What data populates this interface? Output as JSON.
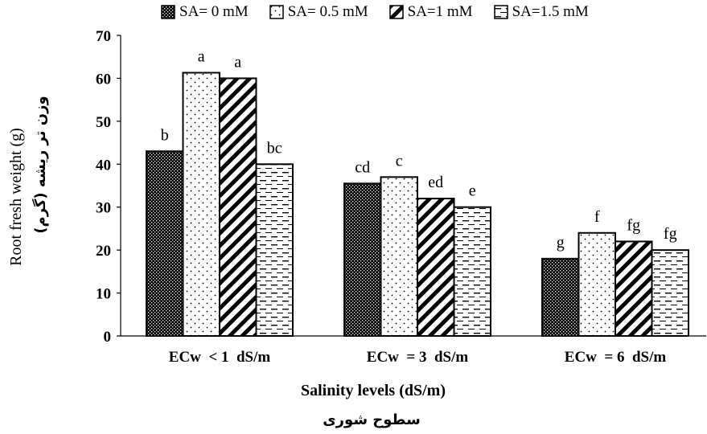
{
  "chart_data": {
    "type": "bar",
    "categories": [
      "ECw  < 1  dS/m",
      "ECw  = 3  dS/m",
      "ECw  = 6  dS/m"
    ],
    "series": [
      {
        "name": "SA= 0 mM",
        "pattern": "dots-dark",
        "values": [
          43,
          35.5,
          18
        ],
        "letters": [
          "b",
          "cd",
          "g"
        ]
      },
      {
        "name": "SA= 0.5 mM",
        "pattern": "dots-light",
        "values": [
          61.3,
          37,
          24
        ],
        "letters": [
          "a",
          "c",
          "f"
        ]
      },
      {
        "name": "SA=1 mM",
        "pattern": "diagonal-stripes",
        "values": [
          60,
          32,
          22
        ],
        "letters": [
          "a",
          "ed",
          "fg"
        ]
      },
      {
        "name": "SA=1.5 mM",
        "pattern": "horizontal-dashes",
        "values": [
          40,
          30,
          20
        ],
        "letters": [
          "bc",
          "e",
          "fg"
        ]
      }
    ],
    "ylim": [
      0,
      70
    ],
    "yticks": [
      0,
      10,
      20,
      30,
      40,
      50,
      60,
      70
    ],
    "ylabel": "Root fresh weight (g)",
    "ylabel_fa": "وزن تر ریشه (گرم)",
    "xlabel": "Salinity levels (dS/m)",
    "xlabel_fa": "سطوح شوری",
    "legend_position": "top",
    "grid": false,
    "colors": {
      "bar_stroke": "#000000",
      "fill": "#ffffff",
      "text": "#000000"
    }
  }
}
